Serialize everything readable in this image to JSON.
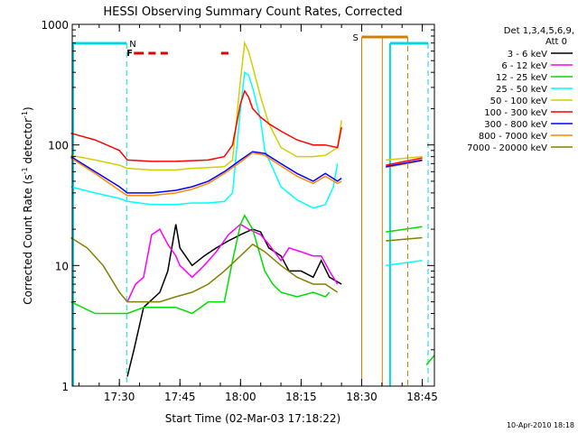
{
  "chart_data": {
    "type": "line",
    "title": "HESSI Observing Summary Count Rates, Corrected",
    "xlabel": "Start Time (02-Mar-03 17:18:22)",
    "ylabel_main": "Corrected Count Rate (s",
    "ylabel_sup1": "-1",
    "ylabel_mid": " detector",
    "ylabel_sup2": "-1",
    "ylabel_end": ")",
    "ylog": true,
    "ylim": [
      1,
      1000
    ],
    "x_ticks": [
      "17:30",
      "17:45",
      "18:00",
      "18:15",
      "18:30",
      "18:45"
    ],
    "y_ticks": [
      "1",
      "10",
      "100",
      "1000"
    ],
    "timestamp": "10-Apr-2010 18:18",
    "legend_title": [
      "Det 1,3,4,5,6,9,",
      "Att 0"
    ],
    "flags": {
      "night": "N",
      "flare": "F",
      "saa": "S"
    },
    "colors": {
      "axis": "#000000",
      "night": "#00d8e8",
      "flare": "#e00000",
      "saa": "#d08000"
    },
    "series": [
      {
        "name": "3 - 6 keV",
        "color": "#000000",
        "x": [
          17.533,
          17.56,
          17.6,
          17.667,
          17.7,
          17.733,
          17.75,
          17.8,
          17.85,
          17.9,
          17.95,
          18.0,
          18.05,
          18.083,
          18.117,
          18.167,
          18.2,
          18.25,
          18.3,
          18.333,
          18.367,
          18.417,
          18.583,
          18.7,
          18.75
        ],
        "y": [
          1.2,
          2,
          4.5,
          6,
          9,
          22,
          14,
          10,
          12,
          14,
          16,
          18,
          20,
          19,
          14,
          12,
          9,
          9,
          8,
          11,
          8,
          7,
          null,
          null,
          null
        ]
      },
      {
        "name": "6 - 12 keV",
        "color": "#ff00ff",
        "x": [
          17.533,
          17.567,
          17.6,
          17.633,
          17.667,
          17.7,
          17.733,
          17.75,
          17.8,
          17.85,
          17.9,
          17.95,
          18.0,
          18.033,
          18.083,
          18.117,
          18.167,
          18.2,
          18.25,
          18.3,
          18.333,
          18.367,
          18.4
        ],
        "y": [
          5,
          7,
          8,
          18,
          20,
          15,
          12,
          10,
          8,
          10,
          13,
          18,
          22,
          20,
          18,
          15,
          11,
          14,
          13,
          12,
          12,
          9,
          7
        ]
      },
      {
        "name": "12 - 25 keV",
        "color": "#00dd00",
        "x": [
          17.3,
          17.4,
          17.5,
          17.533,
          17.6,
          17.667,
          17.733,
          17.8,
          17.867,
          17.933,
          17.967,
          18.0,
          18.017,
          18.05,
          18.1,
          18.133,
          18.167,
          18.233,
          18.3,
          18.35,
          18.367,
          18.417,
          18.583,
          18.633,
          18.7,
          18.75
        ],
        "y": [
          5,
          4,
          4,
          4,
          4.5,
          4.5,
          4.5,
          4,
          5,
          5,
          11,
          22,
          26,
          20,
          9,
          7,
          6,
          5.5,
          6,
          5.5,
          6,
          null,
          null,
          null,
          null,
          null
        ]
      },
      {
        "name": "25 - 50 keV",
        "color": "#00ffff",
        "x": [
          17.3,
          17.4,
          17.5,
          17.533,
          17.633,
          17.733,
          17.8,
          17.867,
          17.933,
          17.967,
          18.0,
          18.017,
          18.033,
          18.05,
          18.083,
          18.1,
          18.167,
          18.233,
          18.3,
          18.35,
          18.383,
          18.4,
          18.583,
          18.617,
          18.7,
          18.75
        ],
        "y": [
          45,
          40,
          36,
          34,
          32,
          32,
          33,
          33,
          34,
          40,
          200,
          400,
          380,
          300,
          160,
          90,
          45,
          35,
          30,
          32,
          45,
          70,
          null,
          null,
          null,
          null
        ]
      },
      {
        "name": "50 - 100 keV",
        "color": "#d0d000",
        "x": [
          17.3,
          17.4,
          17.5,
          17.533,
          17.633,
          17.733,
          17.8,
          17.867,
          17.933,
          17.967,
          18.0,
          18.017,
          18.033,
          18.05,
          18.083,
          18.117,
          18.167,
          18.233,
          18.3,
          18.35,
          18.4,
          18.417,
          18.583,
          18.617,
          18.7,
          18.75
        ],
        "y": [
          82,
          75,
          68,
          64,
          62,
          62,
          64,
          65,
          66,
          75,
          350,
          700,
          600,
          450,
          250,
          150,
          95,
          80,
          80,
          82,
          95,
          160,
          null,
          null,
          null,
          null
        ]
      },
      {
        "name": "100 - 300 keV",
        "color": "#ff0000",
        "x": [
          17.3,
          17.4,
          17.5,
          17.533,
          17.633,
          17.733,
          17.8,
          17.867,
          17.933,
          17.967,
          18.0,
          18.017,
          18.033,
          18.05,
          18.083,
          18.117,
          18.167,
          18.233,
          18.3,
          18.35,
          18.4,
          18.417,
          18.583,
          18.617,
          18.7,
          18.75
        ],
        "y": [
          125,
          110,
          90,
          75,
          73,
          73,
          74,
          75,
          80,
          100,
          220,
          280,
          250,
          200,
          170,
          150,
          130,
          110,
          100,
          100,
          95,
          140,
          null,
          null,
          null,
          null
        ]
      },
      {
        "name": "300 - 800 keV",
        "color": "#0000ff",
        "x": [
          17.3,
          17.4,
          17.5,
          17.533,
          17.633,
          17.733,
          17.8,
          17.867,
          17.933,
          18.0,
          18.05,
          18.1,
          18.167,
          18.233,
          18.3,
          18.35,
          18.4,
          18.417,
          18.583,
          18.617,
          18.7,
          18.75
        ],
        "y": [
          80,
          60,
          45,
          40,
          40,
          42,
          45,
          50,
          60,
          75,
          88,
          85,
          70,
          58,
          50,
          58,
          50,
          53,
          null,
          null,
          null,
          null
        ]
      },
      {
        "name": "800 - 7000 keV",
        "color": "#ff8800",
        "x": [
          17.3,
          17.4,
          17.5,
          17.533,
          17.633,
          17.733,
          17.8,
          17.867,
          17.933,
          18.0,
          18.05,
          18.1,
          18.167,
          18.233,
          18.3,
          18.35,
          18.4,
          18.417,
          18.583,
          18.617,
          18.7,
          18.75
        ],
        "y": [
          78,
          58,
          42,
          38,
          38,
          40,
          43,
          48,
          58,
          72,
          86,
          82,
          67,
          55,
          48,
          55,
          48,
          50,
          null,
          null,
          null,
          null
        ]
      },
      {
        "name": "7000 - 20000 keV",
        "color": "#808000",
        "x": [
          17.3,
          17.367,
          17.433,
          17.5,
          17.533,
          17.6,
          17.667,
          17.733,
          17.8,
          17.867,
          17.933,
          18.0,
          18.05,
          18.1,
          18.167,
          18.233,
          18.3,
          18.35,
          18.4,
          18.583,
          18.617,
          18.7,
          18.75
        ],
        "y": [
          17,
          14,
          10,
          6,
          5,
          5,
          5,
          5.5,
          6,
          7,
          9,
          12,
          15,
          13,
          10,
          8,
          7,
          7,
          6,
          null,
          null,
          null,
          null
        ]
      }
    ],
    "late_segments": [
      {
        "color": "#ff0000",
        "x": [
          18.6,
          18.75
        ],
        "y": [
          68,
          78
        ]
      },
      {
        "color": "#ff8800",
        "x": [
          18.6,
          18.75
        ],
        "y": [
          65,
          74
        ]
      },
      {
        "color": "#0000ff",
        "x": [
          18.6,
          18.75
        ],
        "y": [
          66,
          75
        ]
      },
      {
        "color": "#d0d000",
        "x": [
          18.6,
          18.75
        ],
        "y": [
          75,
          80
        ]
      },
      {
        "color": "#00dd00",
        "x": [
          18.6,
          18.75
        ],
        "y": [
          19,
          21
        ]
      },
      {
        "color": "#808000",
        "x": [
          18.6,
          18.75
        ],
        "y": [
          16,
          17
        ]
      },
      {
        "color": "#00ffff",
        "x": [
          18.6,
          18.75
        ],
        "y": [
          10,
          11
        ]
      },
      {
        "color": "#00dd00",
        "x": [
          18.767,
          18.8
        ],
        "y": [
          1.5,
          1.8
        ]
      }
    ]
  }
}
